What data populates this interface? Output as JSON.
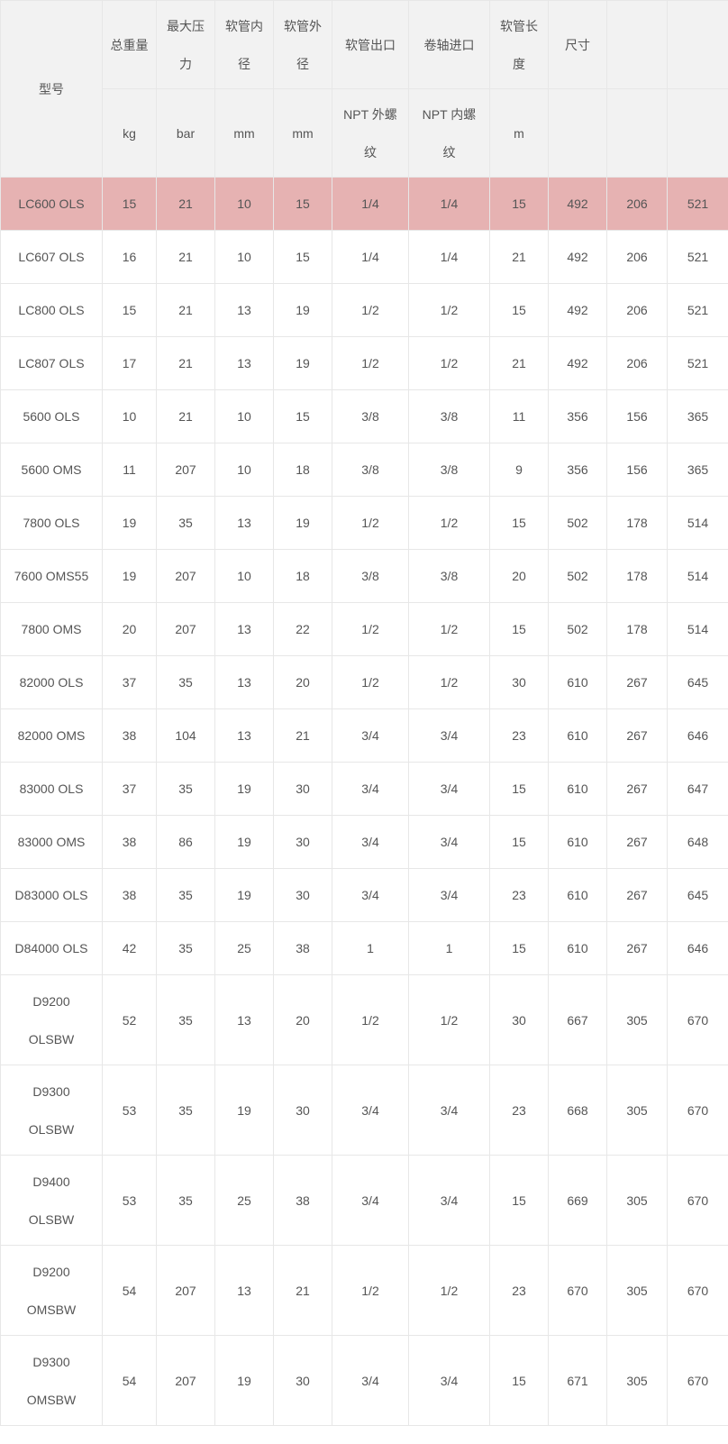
{
  "colors": {
    "page_bg": "#ffffff",
    "header_bg": "#f2f2f2",
    "border": "#e7e7e7",
    "text": "#555555",
    "highlight_bg": "#e6b2b2"
  },
  "table": {
    "model_header": "型号",
    "header_row1": [
      "总重量",
      "最大压\n力",
      "软管内\n径",
      "软管外\n径",
      "软管出口",
      "卷轴进口",
      "软管长\n度",
      "尺寸",
      "",
      ""
    ],
    "header_row2": [
      "kg",
      "bar",
      "mm",
      "mm",
      "NPT 外螺\n纹",
      "NPT 内螺\n纹",
      "m",
      "",
      "",
      ""
    ],
    "rows": [
      {
        "model": "LC600 OLS",
        "highlighted": true,
        "values": [
          "15",
          "21",
          "10",
          "15",
          "1/4",
          "1/4",
          "15",
          "492",
          "206",
          "521"
        ]
      },
      {
        "model": "LC607 OLS",
        "highlighted": false,
        "values": [
          "16",
          "21",
          "10",
          "15",
          "1/4",
          "1/4",
          "21",
          "492",
          "206",
          "521"
        ]
      },
      {
        "model": "LC800 OLS",
        "highlighted": false,
        "values": [
          "15",
          "21",
          "13",
          "19",
          "1/2",
          "1/2",
          "15",
          "492",
          "206",
          "521"
        ]
      },
      {
        "model": "LC807 OLS",
        "highlighted": false,
        "values": [
          "17",
          "21",
          "13",
          "19",
          "1/2",
          "1/2",
          "21",
          "492",
          "206",
          "521"
        ]
      },
      {
        "model": "5600 OLS",
        "highlighted": false,
        "values": [
          "10",
          "21",
          "10",
          "15",
          "3/8",
          "3/8",
          "11",
          "356",
          "156",
          "365"
        ]
      },
      {
        "model": "5600 OMS",
        "highlighted": false,
        "values": [
          "11",
          "207",
          "10",
          "18",
          "3/8",
          "3/8",
          "9",
          "356",
          "156",
          "365"
        ]
      },
      {
        "model": "7800 OLS",
        "highlighted": false,
        "values": [
          "19",
          "35",
          "13",
          "19",
          "1/2",
          "1/2",
          "15",
          "502",
          "178",
          "514"
        ]
      },
      {
        "model": "7600 OMS55",
        "highlighted": false,
        "values": [
          "19",
          "207",
          "10",
          "18",
          "3/8",
          "3/8",
          "20",
          "502",
          "178",
          "514"
        ]
      },
      {
        "model": "7800 OMS",
        "highlighted": false,
        "values": [
          "20",
          "207",
          "13",
          "22",
          "1/2",
          "1/2",
          "15",
          "502",
          "178",
          "514"
        ]
      },
      {
        "model": "82000 OLS",
        "highlighted": false,
        "values": [
          "37",
          "35",
          "13",
          "20",
          "1/2",
          "1/2",
          "30",
          "610",
          "267",
          "645"
        ]
      },
      {
        "model": "82000 OMS",
        "highlighted": false,
        "values": [
          "38",
          "104",
          "13",
          "21",
          "3/4",
          "3/4",
          "23",
          "610",
          "267",
          "646"
        ]
      },
      {
        "model": "83000 OLS",
        "highlighted": false,
        "values": [
          "37",
          "35",
          "19",
          "30",
          "3/4",
          "3/4",
          "15",
          "610",
          "267",
          "647"
        ]
      },
      {
        "model": "83000 OMS",
        "highlighted": false,
        "values": [
          "38",
          "86",
          "19",
          "30",
          "3/4",
          "3/4",
          "15",
          "610",
          "267",
          "648"
        ]
      },
      {
        "model": "D83000 OLS",
        "highlighted": false,
        "values": [
          "38",
          "35",
          "19",
          "30",
          "3/4",
          "3/4",
          "23",
          "610",
          "267",
          "645"
        ]
      },
      {
        "model": "D84000 OLS",
        "highlighted": false,
        "values": [
          "42",
          "35",
          "25",
          "38",
          "1",
          "1",
          "15",
          "610",
          "267",
          "646"
        ]
      },
      {
        "model": "D9200\nOLSBW",
        "highlighted": false,
        "values": [
          "52",
          "35",
          "13",
          "20",
          "1/2",
          "1/2",
          "30",
          "667",
          "305",
          "670"
        ]
      },
      {
        "model": "D9300\nOLSBW",
        "highlighted": false,
        "values": [
          "53",
          "35",
          "19",
          "30",
          "3/4",
          "3/4",
          "23",
          "668",
          "305",
          "670"
        ]
      },
      {
        "model": "D9400\nOLSBW",
        "highlighted": false,
        "values": [
          "53",
          "35",
          "25",
          "38",
          "3/4",
          "3/4",
          "15",
          "669",
          "305",
          "670"
        ]
      },
      {
        "model": "D9200\nOMSBW",
        "highlighted": false,
        "values": [
          "54",
          "207",
          "13",
          "21",
          "1/2",
          "1/2",
          "23",
          "670",
          "305",
          "670"
        ]
      },
      {
        "model": "D9300\nOMSBW",
        "highlighted": false,
        "values": [
          "54",
          "207",
          "19",
          "30",
          "3/4",
          "3/4",
          "15",
          "671",
          "305",
          "670"
        ]
      }
    ]
  }
}
